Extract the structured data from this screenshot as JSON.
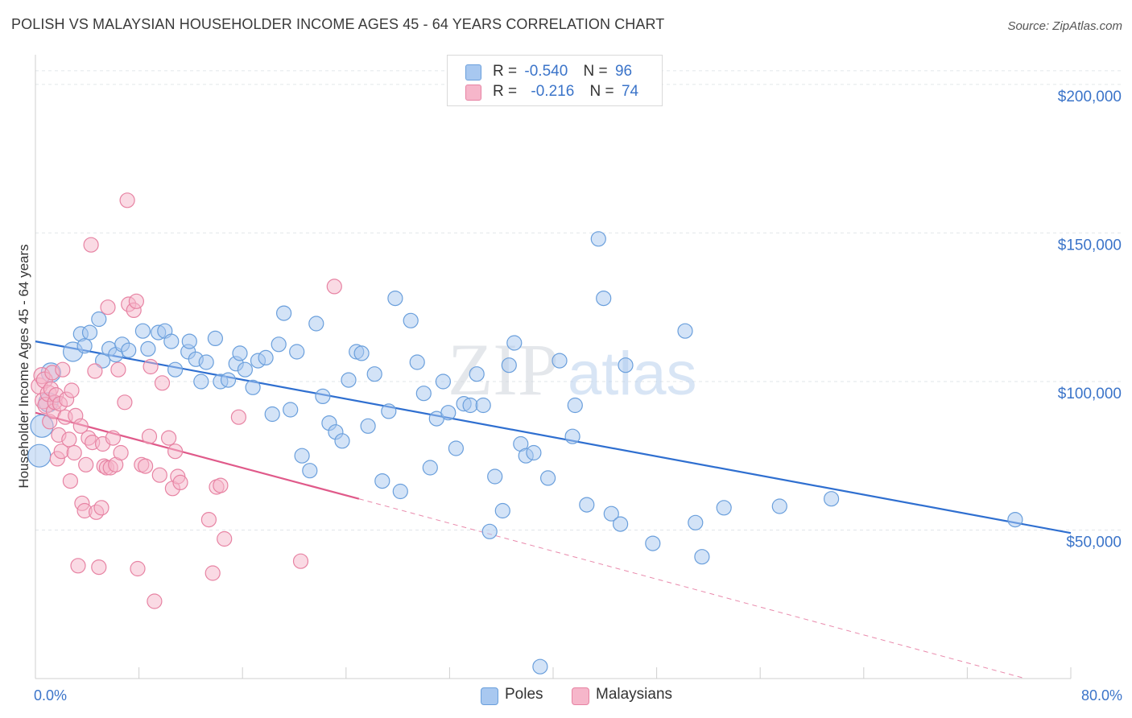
{
  "title": "POLISH VS MALAYSIAN HOUSEHOLDER INCOME AGES 45 - 64 YEARS CORRELATION CHART",
  "source": "Source: ZipAtlas.com",
  "watermark": {
    "zip": "ZIP",
    "atlas": "atlas"
  },
  "legend": {
    "rows": [
      {
        "r_label": "R =",
        "r_value": "-0.540",
        "n_label": "N =",
        "n_value": "96",
        "color": "#a8c8f0"
      },
      {
        "r_label": "R =",
        "r_value": "-0.216",
        "n_label": "N =",
        "n_value": "74",
        "color": "#f6b6ca"
      }
    ]
  },
  "bottom_legend": {
    "poles": "Poles",
    "malaysians": "Malaysians"
  },
  "chart_data": {
    "type": "scatter",
    "xlabel": "",
    "ylabel": "Householder Income Ages 45 - 64 years",
    "xlim": [
      0,
      80
    ],
    "ylim": [
      0,
      210000
    ],
    "x_tick_labels": [
      "0.0%",
      "80.0%"
    ],
    "y_ticks": [
      {
        "value": 50000,
        "label": "$50,000"
      },
      {
        "value": 100000,
        "label": "$100,000"
      },
      {
        "value": 150000,
        "label": "$150,000"
      },
      {
        "value": 200000,
        "label": "$200,000"
      }
    ],
    "grid": true,
    "series": [
      {
        "name": "Poles",
        "color": "#a8c8f0",
        "stroke": "#6a9fdc",
        "trend": {
          "x0": 0,
          "y0": 113500,
          "x1": 80,
          "y1": 49000,
          "color": "#2f6fd0"
        },
        "points": [
          [
            0.3,
            75000
          ],
          [
            0.5,
            85000
          ],
          [
            1,
            93000
          ],
          [
            1.2,
            103000
          ],
          [
            2.9,
            110000
          ],
          [
            3.5,
            116000
          ],
          [
            3.8,
            112000
          ],
          [
            4.2,
            116500
          ],
          [
            4.9,
            121000
          ],
          [
            5.2,
            107000
          ],
          [
            5.7,
            111000
          ],
          [
            6.2,
            109000
          ],
          [
            6.7,
            112500
          ],
          [
            7.2,
            110500
          ],
          [
            8.3,
            117000
          ],
          [
            8.7,
            111000
          ],
          [
            9.5,
            116500
          ],
          [
            10,
            117000
          ],
          [
            10.5,
            113500
          ],
          [
            10.8,
            104000
          ],
          [
            11.8,
            110000
          ],
          [
            11.9,
            113500
          ],
          [
            12.4,
            107500
          ],
          [
            12.8,
            100000
          ],
          [
            13.2,
            106500
          ],
          [
            13.9,
            114500
          ],
          [
            14.3,
            100000
          ],
          [
            14.9,
            100500
          ],
          [
            15.5,
            106000
          ],
          [
            15.8,
            109500
          ],
          [
            16.2,
            104000
          ],
          [
            16.8,
            98000
          ],
          [
            17.2,
            107000
          ],
          [
            17.8,
            108000
          ],
          [
            18.3,
            89000
          ],
          [
            18.8,
            112500
          ],
          [
            19.2,
            123000
          ],
          [
            19.7,
            90500
          ],
          [
            20.2,
            110000
          ],
          [
            20.6,
            75000
          ],
          [
            21.2,
            70000
          ],
          [
            21.7,
            119500
          ],
          [
            22.2,
            95000
          ],
          [
            22.7,
            86000
          ],
          [
            23.2,
            83000
          ],
          [
            23.7,
            80000
          ],
          [
            24.2,
            100500
          ],
          [
            24.8,
            110000
          ],
          [
            25.2,
            109500
          ],
          [
            25.7,
            85000
          ],
          [
            26.2,
            102500
          ],
          [
            26.8,
            66500
          ],
          [
            27.3,
            90000
          ],
          [
            27.8,
            128000
          ],
          [
            28.2,
            63000
          ],
          [
            29,
            120500
          ],
          [
            29.5,
            106500
          ],
          [
            30,
            96000
          ],
          [
            30.5,
            71000
          ],
          [
            31,
            87500
          ],
          [
            31.5,
            100000
          ],
          [
            31.9,
            89500
          ],
          [
            32.5,
            77500
          ],
          [
            33.1,
            92500
          ],
          [
            33.6,
            92000
          ],
          [
            34.1,
            102500
          ],
          [
            34.6,
            92000
          ],
          [
            35.1,
            49500
          ],
          [
            35.5,
            68000
          ],
          [
            36.1,
            56500
          ],
          [
            36.6,
            105500
          ],
          [
            37,
            113000
          ],
          [
            37.5,
            79000
          ],
          [
            37.9,
            75000
          ],
          [
            38.5,
            76000
          ],
          [
            39,
            4000
          ],
          [
            39.6,
            67500
          ],
          [
            40.5,
            107000
          ],
          [
            41.5,
            81500
          ],
          [
            41.7,
            92000
          ],
          [
            42.6,
            58500
          ],
          [
            43.5,
            148000
          ],
          [
            43.9,
            128000
          ],
          [
            44.5,
            55500
          ],
          [
            45.2,
            52000
          ],
          [
            45.6,
            105500
          ],
          [
            47.7,
            45500
          ],
          [
            50.2,
            117000
          ],
          [
            51,
            52500
          ],
          [
            51.5,
            41000
          ],
          [
            53.2,
            57500
          ],
          [
            57.5,
            58000
          ],
          [
            61.5,
            60500
          ],
          [
            75.7,
            53500
          ]
        ]
      },
      {
        "name": "Malaysians",
        "color": "#f6b6ca",
        "stroke": "#e783a3",
        "trend": {
          "x0": 0,
          "y0": 89500,
          "x1": 25,
          "y1": 60500,
          "x2": 76.5,
          "y2": 0,
          "color": "#e05a8a"
        },
        "points": [
          [
            0.3,
            98500
          ],
          [
            0.5,
            102000
          ],
          [
            0.6,
            93500
          ],
          [
            0.7,
            100500
          ],
          [
            0.8,
            92000
          ],
          [
            1,
            96000
          ],
          [
            1.1,
            86500
          ],
          [
            1.2,
            97500
          ],
          [
            1.3,
            103000
          ],
          [
            1.4,
            90000
          ],
          [
            1.5,
            93000
          ],
          [
            1.6,
            95500
          ],
          [
            1.7,
            74000
          ],
          [
            1.8,
            82000
          ],
          [
            1.9,
            92500
          ],
          [
            2,
            76500
          ],
          [
            2.1,
            104000
          ],
          [
            2.3,
            88000
          ],
          [
            2.4,
            94000
          ],
          [
            2.6,
            80500
          ],
          [
            2.7,
            66500
          ],
          [
            2.8,
            97000
          ],
          [
            3,
            76000
          ],
          [
            3.1,
            88500
          ],
          [
            3.3,
            38000
          ],
          [
            3.5,
            85000
          ],
          [
            3.6,
            59000
          ],
          [
            3.8,
            56500
          ],
          [
            3.9,
            72000
          ],
          [
            4.1,
            81000
          ],
          [
            4.3,
            146000
          ],
          [
            4.4,
            79500
          ],
          [
            4.6,
            103500
          ],
          [
            4.7,
            56000
          ],
          [
            4.9,
            37500
          ],
          [
            5.1,
            57500
          ],
          [
            5.2,
            79000
          ],
          [
            5.3,
            71500
          ],
          [
            5.5,
            71000
          ],
          [
            5.6,
            125000
          ],
          [
            5.8,
            71000
          ],
          [
            6,
            81000
          ],
          [
            6.2,
            72000
          ],
          [
            6.4,
            104000
          ],
          [
            6.6,
            76000
          ],
          [
            6.9,
            93000
          ],
          [
            7.1,
            161000
          ],
          [
            7.2,
            126000
          ],
          [
            7.6,
            124000
          ],
          [
            7.8,
            127000
          ],
          [
            7.9,
            37000
          ],
          [
            8.2,
            72000
          ],
          [
            8.5,
            71500
          ],
          [
            8.8,
            81500
          ],
          [
            8.9,
            105000
          ],
          [
            9.2,
            26000
          ],
          [
            9.6,
            68500
          ],
          [
            9.8,
            99500
          ],
          [
            10.3,
            81000
          ],
          [
            10.6,
            64000
          ],
          [
            10.8,
            76500
          ],
          [
            11,
            68000
          ],
          [
            11.2,
            66000
          ],
          [
            13.4,
            53500
          ],
          [
            13.7,
            35500
          ],
          [
            14,
            64500
          ],
          [
            14.3,
            65000
          ],
          [
            14.6,
            47000
          ],
          [
            15.7,
            88000
          ],
          [
            20.5,
            39500
          ],
          [
            23.1,
            132000
          ]
        ]
      }
    ]
  }
}
